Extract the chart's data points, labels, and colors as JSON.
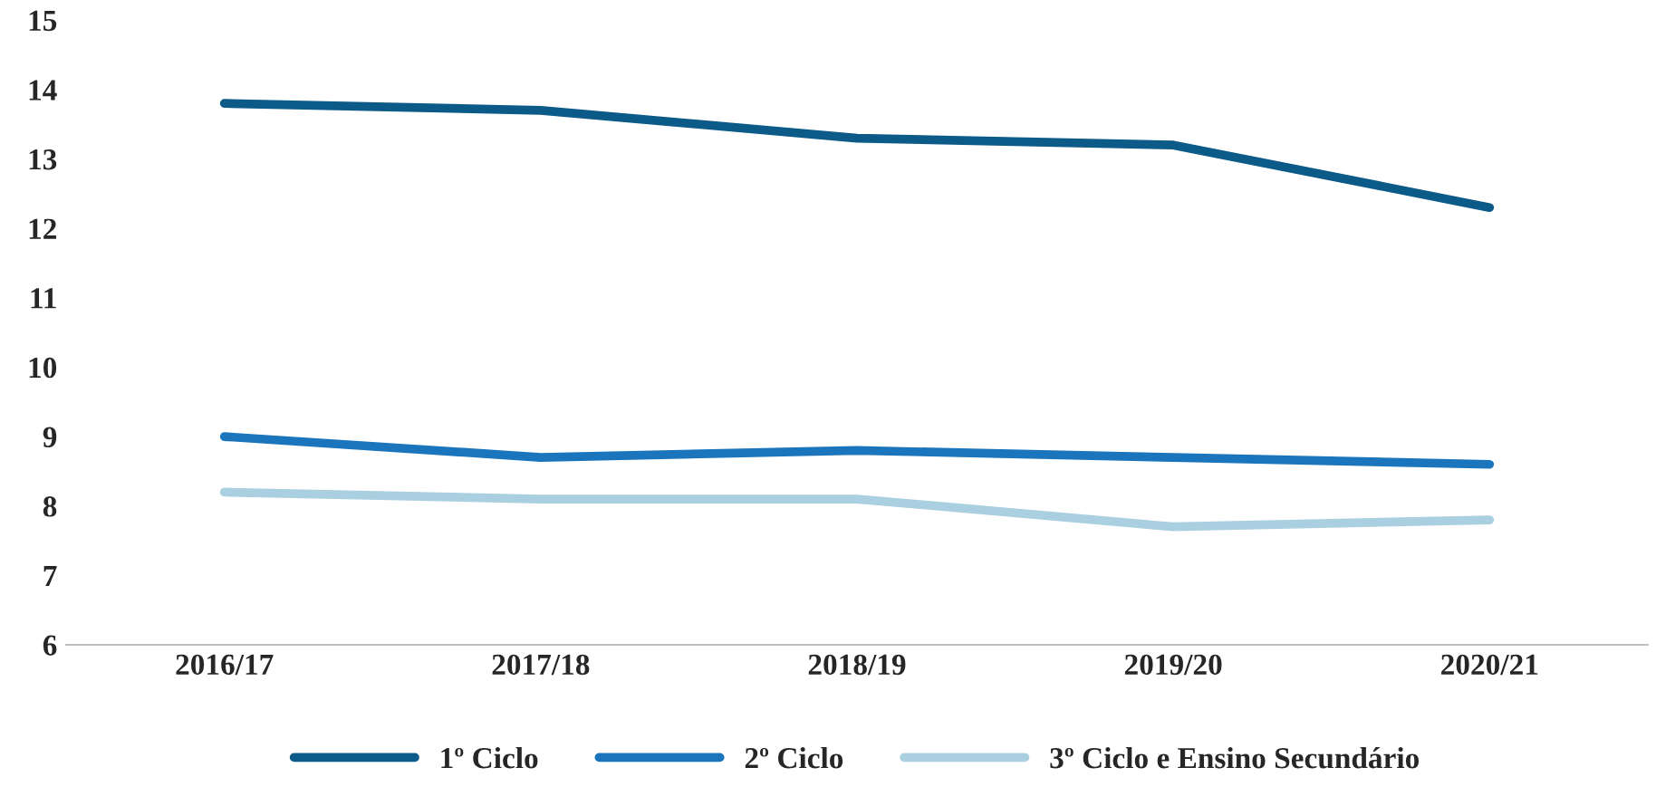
{
  "chart_data": {
    "type": "line",
    "categories": [
      "2016/17",
      "2017/18",
      "2018/19",
      "2019/20",
      "2020/21"
    ],
    "series": [
      {
        "name": "1º Ciclo",
        "color": "#0b5a87",
        "values": [
          13.8,
          13.7,
          13.3,
          13.2,
          12.3
        ]
      },
      {
        "name": "2º Ciclo",
        "color": "#1a75bc",
        "values": [
          9.0,
          8.7,
          8.8,
          8.7,
          8.6
        ]
      },
      {
        "name": "3º Ciclo e Ensino Secundário",
        "color": "#aacfe0",
        "values": [
          8.2,
          8.1,
          8.1,
          7.7,
          7.8
        ]
      }
    ],
    "ylim": [
      6,
      15
    ],
    "yticks": [
      6,
      7,
      8,
      9,
      10,
      11,
      12,
      13,
      14,
      15
    ],
    "grid": false,
    "legend": "bottom",
    "marker": "none",
    "line_style": "solid"
  }
}
